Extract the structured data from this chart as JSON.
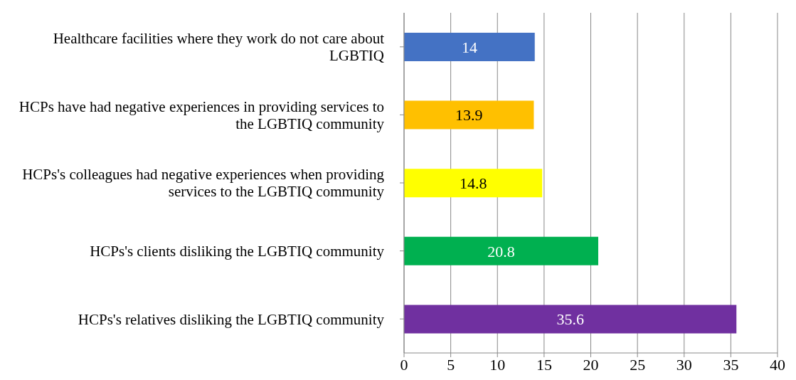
{
  "chart_data": {
    "type": "bar",
    "orientation": "horizontal",
    "categories": [
      "Healthcare facilities where they work do not care about LGBTIQ",
      "HCPs have had negative experiences in providing services to the LGBTIQ community",
      "HCPs's colleagues had negative experiences when providing services to the LGBTIQ community",
      "HCPs's clients disliking the LGBTIQ community",
      "HCPs's relatives disliking the LGBTIQ community"
    ],
    "values": [
      14,
      13.9,
      14.8,
      20.8,
      35.6
    ],
    "colors": [
      "#4472c4",
      "#ffc000",
      "#ffff00",
      "#00b050",
      "#7030a0"
    ],
    "xlim": [
      0,
      40
    ],
    "xticks": [
      0,
      5,
      10,
      15,
      20,
      25,
      30,
      35,
      40
    ],
    "grid": "x",
    "data_labels": true,
    "legend": false
  }
}
